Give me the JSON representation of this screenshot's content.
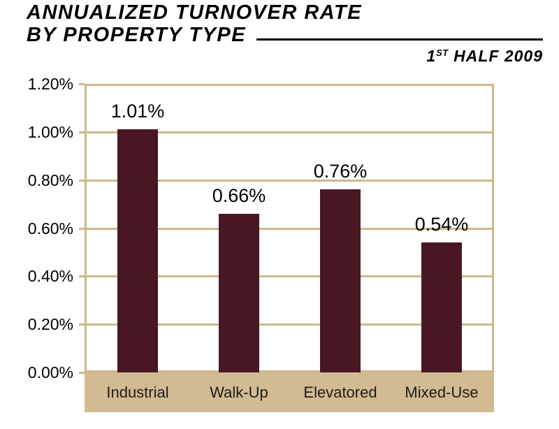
{
  "title": {
    "line1": "ANNUALIZED TURNOVER RATE",
    "line2": "BY PROPERTY TYPE"
  },
  "subtitle": {
    "prefix": "1",
    "superscript": "ST",
    "rest": " HALF 2009"
  },
  "colors": {
    "bar": "#491722",
    "band": "#d2bb92",
    "grid": "#cfb88c",
    "text": "#000000"
  },
  "chart_data": {
    "type": "bar",
    "title": "ANNUALIZED TURNOVER RATE BY PROPERTY TYPE",
    "subtitle": "1ST HALF 2009",
    "categories": [
      "Industrial",
      "Walk-Up",
      "Elevatored",
      "Mixed-Use"
    ],
    "values": [
      1.01,
      0.66,
      0.76,
      0.54
    ],
    "value_labels": [
      "1.01%",
      "0.66%",
      "0.76%",
      "0.54%"
    ],
    "y_ticks": [
      "1.20%",
      "1.00%",
      "0.80%",
      "0.60%",
      "0.40%",
      "0.20%",
      "0.00%"
    ],
    "y_tick_values": [
      1.2,
      1.0,
      0.8,
      0.6,
      0.4,
      0.2,
      0.0
    ],
    "ylim": [
      0,
      1.2
    ],
    "xlabel": "",
    "ylabel": "",
    "grid": true,
    "legend": false,
    "bar_color": "#491722",
    "units": "percent"
  }
}
